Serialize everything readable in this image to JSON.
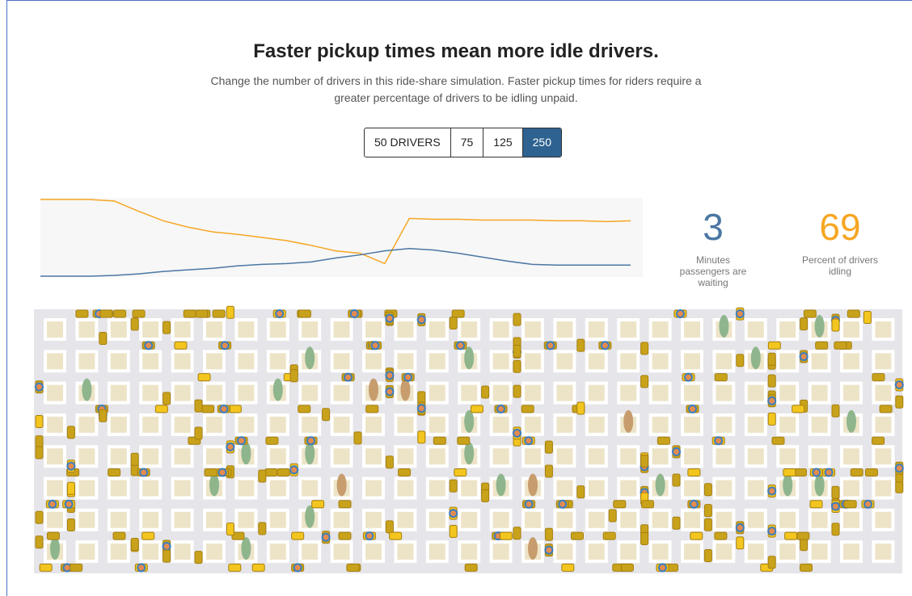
{
  "header": {
    "title": "Faster pickup times mean more idle drivers.",
    "subtitle": "Change the number of drivers in this ride-share simulation. Faster pickup times for riders require a greater percentage of drivers to be idling unpaid."
  },
  "buttons": [
    "50 DRIVERS",
    "75",
    "125",
    "250"
  ],
  "selected_button": 3,
  "stats": [
    {
      "value": 3,
      "label": "Minutes passengers are waiting",
      "color": "#4b77a3"
    },
    {
      "value": 69,
      "label": "Percent of drivers idling",
      "color": "#f6a623"
    }
  ],
  "chart_data": {
    "type": "line",
    "ylim": [
      0,
      100
    ],
    "series": [
      {
        "color": "#f6a623",
        "values": [
          98,
          98,
          98,
          96,
          83,
          71,
          63,
          57,
          54,
          50,
          46,
          40,
          33,
          30,
          17,
          74,
          73,
          73,
          72,
          72,
          72,
          71,
          71,
          70,
          71
        ]
      },
      {
        "color": "#4b77a3",
        "values": [
          1,
          1,
          1,
          2,
          4,
          7,
          9,
          11,
          14,
          16,
          17,
          19,
          24,
          28,
          33,
          36,
          34,
          30,
          25,
          20,
          16,
          15,
          15,
          15,
          15
        ]
      }
    ]
  }
}
